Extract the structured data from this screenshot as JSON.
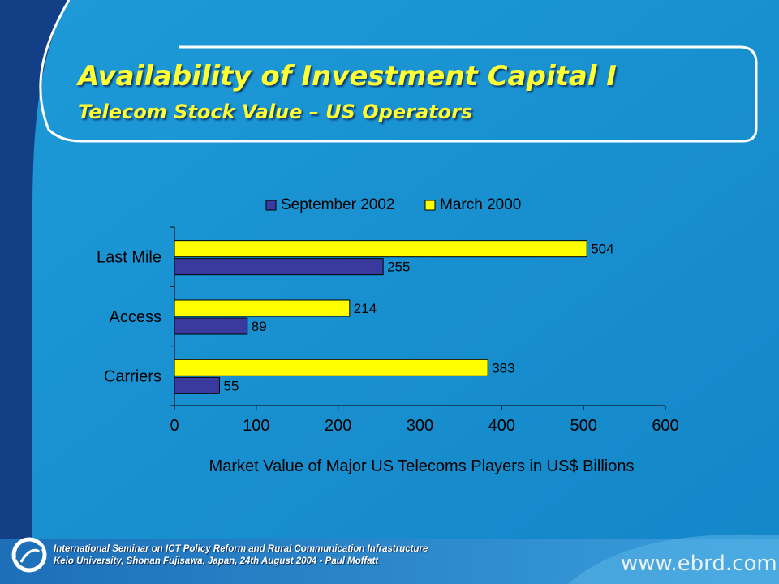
{
  "slide": {
    "title": "Availability of Investment Capital  I",
    "subtitle": "Telecom Stock Value – US Operators"
  },
  "colors": {
    "background": "#1a8fd0",
    "left_band": "#123f86",
    "title": "#ffff33",
    "series_sep2002": "#3a3a9e",
    "series_mar2000": "#ffff00"
  },
  "chart_data": {
    "type": "bar",
    "orientation": "horizontal",
    "categories": [
      "Last Mile",
      "Access",
      "Carriers"
    ],
    "series": [
      {
        "name": "September 2002",
        "values": [
          255,
          89,
          55
        ],
        "color": "#3a3a9e"
      },
      {
        "name": "March 2000",
        "values": [
          504,
          214,
          383
        ],
        "color": "#ffff00"
      }
    ],
    "xlabel": "Market Value of Major US Telecoms Players in US$ Billions",
    "ylabel": "",
    "xlim": [
      0,
      600
    ],
    "xticks": [
      0,
      100,
      200,
      300,
      400,
      500,
      600
    ],
    "legend": "top",
    "grid": false
  },
  "footer": {
    "line1": "International Seminar on ICT Policy Reform and Rural Communication Infrastructure",
    "line2": "Keio University, Shonan Fujisawa, Japan, 24th August 2004 - Paul Moffatt",
    "url": "www.ebrd.com",
    "logo_icon": "ebrd-logo"
  }
}
